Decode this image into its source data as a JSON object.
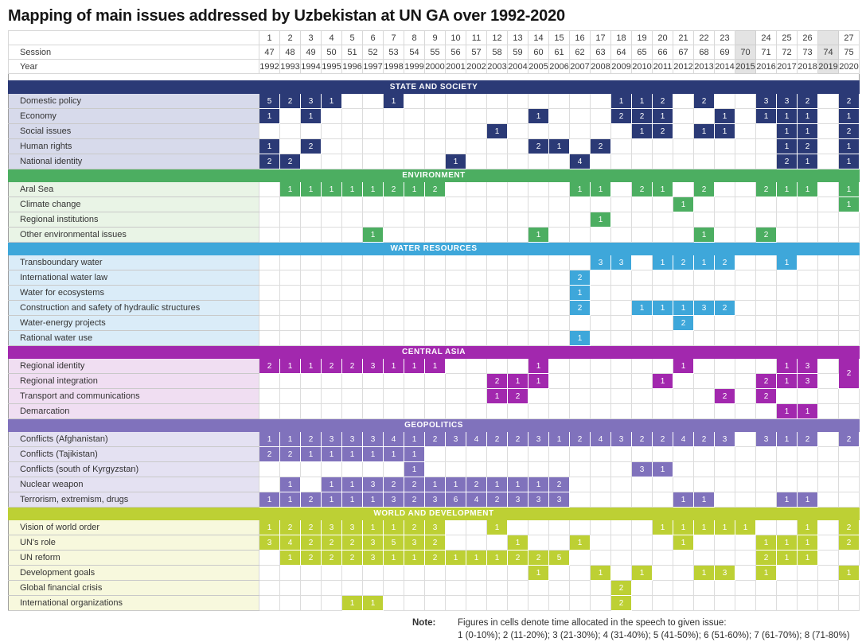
{
  "title": "Mapping of main issues addressed by Uzbekistan at UN GA over 1992-2020",
  "note": {
    "label": "Note:",
    "line1": "Figures in cells denote time allocated in the speech to given issue:",
    "line2": "1 (0-10%);  2 (11-20%);  3 (21-30%);  4 (31-40%);  5 (41-50%);  6 (51-60%);  7 (61-70%);  8 (71-80%)"
  },
  "chart_data": {
    "type": "heatmap",
    "title": "Mapping of main issues addressed by Uzbekistan at UN GA over 1992-2020",
    "value_legend": "1 (0-10%); 2 (11-20%); 3 (21-30%); 4 (31-40%); 5 (41-50%); 6 (51-60%); 7 (61-70%); 8 (71-80%)",
    "header_labels": {
      "session": "Session",
      "year": "Year"
    },
    "columns": [
      {
        "n": "1",
        "s": "47",
        "y": "1992"
      },
      {
        "n": "2",
        "s": "48",
        "y": "1993"
      },
      {
        "n": "3",
        "s": "49",
        "y": "1994"
      },
      {
        "n": "4",
        "s": "50",
        "y": "1995"
      },
      {
        "n": "5",
        "s": "51",
        "y": "1996"
      },
      {
        "n": "6",
        "s": "52",
        "y": "1997"
      },
      {
        "n": "7",
        "s": "53",
        "y": "1998"
      },
      {
        "n": "8",
        "s": "54",
        "y": "1999"
      },
      {
        "n": "9",
        "s": "55",
        "y": "2000"
      },
      {
        "n": "10",
        "s": "56",
        "y": "2001"
      },
      {
        "n": "11",
        "s": "57",
        "y": "2002"
      },
      {
        "n": "12",
        "s": "58",
        "y": "2003"
      },
      {
        "n": "13",
        "s": "59",
        "y": "2004"
      },
      {
        "n": "14",
        "s": "60",
        "y": "2005"
      },
      {
        "n": "15",
        "s": "61",
        "y": "2006"
      },
      {
        "n": "16",
        "s": "62",
        "y": "2007"
      },
      {
        "n": "17",
        "s": "63",
        "y": "2008"
      },
      {
        "n": "18",
        "s": "64",
        "y": "2009"
      },
      {
        "n": "19",
        "s": "65",
        "y": "2010"
      },
      {
        "n": "20",
        "s": "66",
        "y": "2011"
      },
      {
        "n": "21",
        "s": "67",
        "y": "2012"
      },
      {
        "n": "22",
        "s": "68",
        "y": "2013"
      },
      {
        "n": "23",
        "s": "69",
        "y": "2014"
      },
      {
        "n": "",
        "s": "70",
        "y": "2015",
        "gray": true
      },
      {
        "n": "24",
        "s": "71",
        "y": "2016"
      },
      {
        "n": "25",
        "s": "72",
        "y": "2017"
      },
      {
        "n": "26",
        "s": "73",
        "y": "2018"
      },
      {
        "n": "",
        "s": "74",
        "y": "2019",
        "gray": true
      },
      {
        "n": "27",
        "s": "75",
        "y": "2020"
      }
    ],
    "sections": [
      {
        "name": "STATE AND SOCIETY",
        "color": "#2b3a76",
        "label_bg": "#d7daeb",
        "rows": [
          {
            "label": "Domestic policy",
            "values": {
              "1992": 5,
              "1993": 2,
              "1994": 3,
              "1995": 1,
              "1998": 1,
              "2009": 1,
              "2010": 1,
              "2011": 2,
              "2013": 2,
              "2016": 3,
              "2017": 3,
              "2018": 2,
              "2020": 2
            }
          },
          {
            "label": "Economy",
            "values": {
              "1992": 1,
              "1994": 1,
              "2005": 1,
              "2009": 2,
              "2010": 2,
              "2011": 1,
              "2014": 1,
              "2016": 1,
              "2017": 1,
              "2018": 1,
              "2020": 1
            }
          },
          {
            "label": "Social issues",
            "values": {
              "2003": 1,
              "2010": 1,
              "2011": 2,
              "2013": 1,
              "2014": 1,
              "2017": 1,
              "2018": 1,
              "2020": 2
            }
          },
          {
            "label": "Human rights",
            "values": {
              "1992": 1,
              "1994": 2,
              "2005": 2,
              "2006": 1,
              "2008": 2,
              "2017": 1,
              "2018": 2,
              "2020": 1
            }
          },
          {
            "label": "National identity",
            "values": {
              "1992": 2,
              "1993": 2,
              "2001": 1,
              "2007": 4,
              "2017": 2,
              "2018": 1,
              "2020": 1
            }
          }
        ]
      },
      {
        "name": "ENVIRONMENT",
        "color": "#4cae61",
        "label_bg": "#e9f4e6",
        "rows": [
          {
            "label": "Aral Sea",
            "values": {
              "1993": 1,
              "1994": 1,
              "1995": 1,
              "1996": 1,
              "1997": 1,
              "1998": 2,
              "1999": 1,
              "2000": 2,
              "2007": 1,
              "2008": 1,
              "2010": 2,
              "2011": 1,
              "2013": 2,
              "2016": 2,
              "2017": 1,
              "2018": 1,
              "2020": 1
            }
          },
          {
            "label": "Climate change",
            "values": {
              "2012": 1,
              "2020": 1
            }
          },
          {
            "label": "Regional institutions",
            "values": {
              "2008": 1
            }
          },
          {
            "label": "Other environmental issues",
            "values": {
              "1997": 1,
              "2005": 1,
              "2013": 1,
              "2016": 2
            }
          }
        ]
      },
      {
        "name": "WATER RESOURCES",
        "color": "#3ea7da",
        "label_bg": "#daecf8",
        "rows": [
          {
            "label": "Transboundary water",
            "values": {
              "2008": 3,
              "2009": 3,
              "2011": 1,
              "2012": 2,
              "2013": 1,
              "2014": 2,
              "2017": 1
            }
          },
          {
            "label": "International water law",
            "values": {
              "2007": 2
            }
          },
          {
            "label": "Water for ecosystems",
            "values": {
              "2007": 1
            }
          },
          {
            "label": "Construction and safety of hydraulic structures",
            "values": {
              "2007": 2,
              "2010": 1,
              "2011": 1,
              "2012": 1,
              "2013": 3,
              "2014": 2
            }
          },
          {
            "label": "Water-energy projects",
            "values": {
              "2012": 2
            }
          },
          {
            "label": "Rational water use",
            "values": {
              "2007": 1
            }
          }
        ]
      },
      {
        "name": "CENTRAL ASIA",
        "color": "#a228ae",
        "label_bg": "#f0def2",
        "rows": [
          {
            "label": "Regional identity",
            "values": {
              "1992": 2,
              "1993": 1,
              "1994": 1,
              "1995": 2,
              "1996": 2,
              "1997": 3,
              "1998": 1,
              "1999": 1,
              "2000": 1,
              "2005": 1,
              "2012": 1,
              "2017": 1,
              "2018": 3,
              "2020": 2
            },
            "rowspan": {
              "2020": 2
            }
          },
          {
            "label": "Regional integration",
            "values": {
              "2003": 2,
              "2004": 1,
              "2005": 1,
              "2011": 1,
              "2016": 2,
              "2017": 1,
              "2018": 3
            },
            "skip": [
              "2020"
            ]
          },
          {
            "label": "Transport and communications",
            "values": {
              "2003": 1,
              "2004": 2,
              "2014": 2,
              "2016": 2
            }
          },
          {
            "label": "Demarcation",
            "values": {
              "2017": 1,
              "2018": 1
            }
          }
        ]
      },
      {
        "name": "GEOPOLITICS",
        "color": "#8072bc",
        "label_bg": "#e4e1f2",
        "rows": [
          {
            "label": "Conflicts (Afghanistan)",
            "values": {
              "1992": 1,
              "1993": 1,
              "1994": 2,
              "1995": 3,
              "1996": 3,
              "1997": 3,
              "1998": 4,
              "1999": 1,
              "2000": 2,
              "2001": 3,
              "2002": 4,
              "2003": 2,
              "2004": 2,
              "2005": 3,
              "2006": 1,
              "2007": 2,
              "2008": 4,
              "2009": 3,
              "2010": 2,
              "2011": 2,
              "2012": 4,
              "2013": 2,
              "2014": 3,
              "2016": 3,
              "2017": 1,
              "2018": 2,
              "2020": 2
            }
          },
          {
            "label": "Conflicts (Tajikistan)",
            "values": {
              "1992": 2,
              "1993": 2,
              "1994": 1,
              "1995": 1,
              "1996": 1,
              "1997": 1,
              "1998": 1,
              "1999": 1
            }
          },
          {
            "label": "Conflicts (south of Kyrgyzstan)",
            "values": {
              "1999": 1,
              "2010": 3,
              "2011": 1
            }
          },
          {
            "label": "Nuclear weapon",
            "values": {
              "1993": 1,
              "1995": 1,
              "1996": 1,
              "1997": 3,
              "1998": 2,
              "1999": 2,
              "2000": 1,
              "2001": 1,
              "2002": 2,
              "2003": 1,
              "2004": 1,
              "2005": 1,
              "2006": 2
            }
          },
          {
            "label": "Terrorism, extremism, drugs",
            "values": {
              "1992": 1,
              "1993": 1,
              "1994": 2,
              "1995": 1,
              "1996": 1,
              "1997": 1,
              "1998": 3,
              "1999": 2,
              "2000": 3,
              "2001": 6,
              "2002": 4,
              "2003": 2,
              "2004": 3,
              "2005": 3,
              "2006": 3,
              "2012": 1,
              "2013": 1,
              "2017": 1,
              "2018": 1
            }
          }
        ]
      },
      {
        "name": "WORLD AND DEVELOPMENT",
        "color": "#bdd034",
        "label_bg": "#f7f8dd",
        "rows": [
          {
            "label": "Vision of world order",
            "values": {
              "1992": 1,
              "1993": 2,
              "1994": 2,
              "1995": 3,
              "1996": 3,
              "1997": 1,
              "1998": 1,
              "1999": 2,
              "2000": 3,
              "2003": 1,
              "2011": 1,
              "2012": 1,
              "2013": 1,
              "2014": 1,
              "2015": 1,
              "2018": 1,
              "2020": 2
            }
          },
          {
            "label": "UN's role",
            "values": {
              "1992": 3,
              "1993": 4,
              "1994": 2,
              "1995": 2,
              "1996": 2,
              "1997": 3,
              "1998": 5,
              "1999": 3,
              "2000": 2,
              "2004": 1,
              "2007": 1,
              "2012": 1,
              "2016": 1,
              "2017": 1,
              "2018": 1,
              "2020": 2
            }
          },
          {
            "label": "UN reform",
            "values": {
              "1993": 1,
              "1994": 2,
              "1995": 2,
              "1996": 2,
              "1997": 3,
              "1998": 1,
              "1999": 1,
              "2000": 2,
              "2001": 1,
              "2002": 1,
              "2003": 1,
              "2004": 2,
              "2005": 2,
              "2006": 5,
              "2016": 2,
              "2017": 1,
              "2018": 1
            }
          },
          {
            "label": "Development goals",
            "values": {
              "2005": 1,
              "2008": 1,
              "2010": 1,
              "2013": 1,
              "2014": 3,
              "2016": 1,
              "2020": 1
            }
          },
          {
            "label": "Global financial crisis",
            "values": {
              "2009": 2
            }
          },
          {
            "label": "International organizations",
            "values": {
              "1996": 1,
              "1997": 1,
              "2009": 2
            }
          }
        ]
      }
    ]
  }
}
